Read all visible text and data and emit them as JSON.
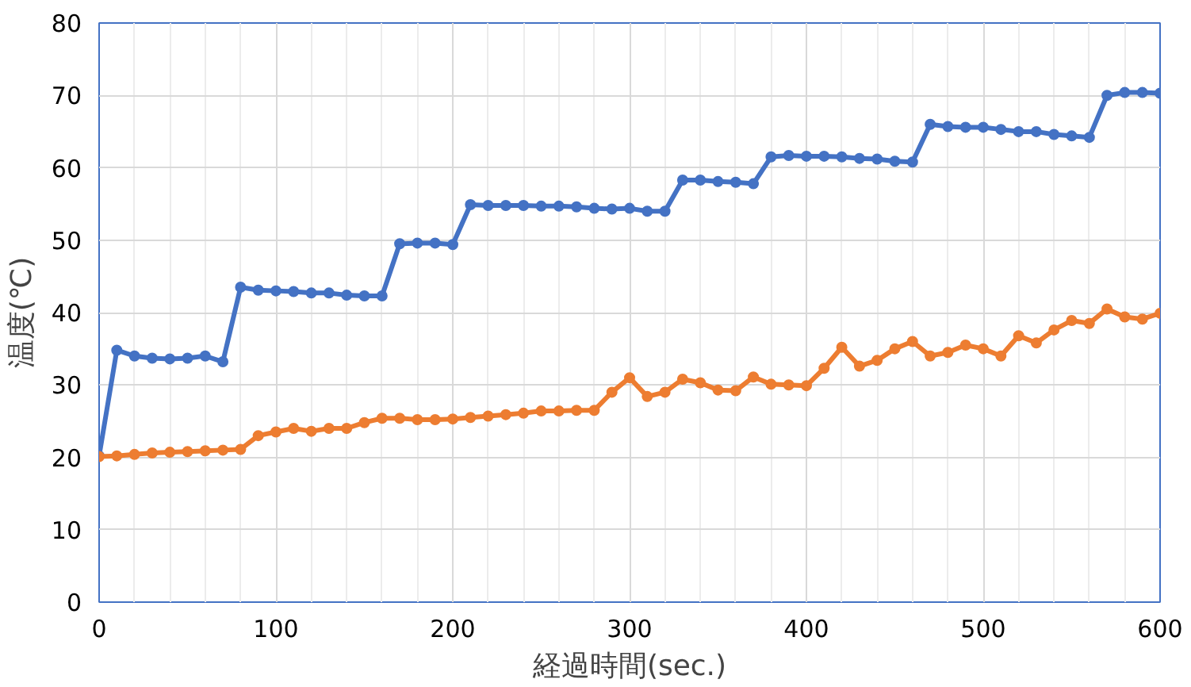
{
  "chart_data": {
    "type": "line",
    "xlabel": "経過時間(sec.)",
    "ylabel": "温度(℃)",
    "x": [
      0,
      10,
      20,
      30,
      40,
      50,
      60,
      70,
      80,
      90,
      100,
      110,
      120,
      130,
      140,
      150,
      160,
      170,
      180,
      190,
      200,
      210,
      220,
      230,
      240,
      250,
      260,
      270,
      280,
      290,
      300,
      310,
      320,
      330,
      340,
      350,
      360,
      370,
      380,
      390,
      400,
      410,
      420,
      430,
      440,
      450,
      460,
      470,
      480,
      490,
      500,
      510,
      520,
      530,
      540,
      550,
      560,
      570,
      580,
      590,
      600
    ],
    "series": [
      {
        "color": "#4472c4",
        "values": [
          20.2,
          34.8,
          34.0,
          33.7,
          33.6,
          33.7,
          34.0,
          33.2,
          43.5,
          43.1,
          43.0,
          42.9,
          42.7,
          42.7,
          42.4,
          42.3,
          42.3,
          49.5,
          49.6,
          49.6,
          49.4,
          54.9,
          54.8,
          54.8,
          54.8,
          54.7,
          54.7,
          54.6,
          54.4,
          54.3,
          54.4,
          54.0,
          54.0,
          58.3,
          58.3,
          58.1,
          58.0,
          57.8,
          61.5,
          61.7,
          61.6,
          61.6,
          61.5,
          61.3,
          61.2,
          60.9,
          60.8,
          66.0,
          65.7,
          65.6,
          65.6,
          65.3,
          65.0,
          65.0,
          64.6,
          64.4,
          64.2,
          70.0,
          70.4,
          70.4,
          70.3
        ]
      },
      {
        "color": "#ed7d31",
        "values": [
          20.1,
          20.2,
          20.4,
          20.6,
          20.7,
          20.8,
          20.9,
          21.0,
          21.1,
          23.0,
          23.5,
          24.0,
          23.6,
          24.0,
          24.0,
          24.8,
          25.4,
          25.4,
          25.2,
          25.2,
          25.3,
          25.5,
          25.7,
          25.9,
          26.1,
          26.4,
          26.4,
          26.5,
          26.5,
          29.0,
          31.0,
          28.4,
          29.0,
          30.8,
          30.3,
          29.3,
          29.2,
          31.1,
          30.1,
          30.0,
          29.9,
          32.3,
          35.2,
          32.6,
          33.4,
          35.0,
          36.0,
          34.0,
          34.5,
          35.5,
          35.0,
          34.0,
          36.8,
          35.8,
          37.6,
          38.9,
          38.5,
          40.5,
          39.4,
          39.1,
          39.9
        ]
      }
    ],
    "xlim": [
      0,
      600
    ],
    "xticks": [
      0,
      100,
      200,
      300,
      400,
      500,
      600
    ],
    "ylim": [
      0,
      80
    ],
    "yticks": [
      0,
      10,
      20,
      30,
      40,
      50,
      60,
      70,
      80
    ],
    "grid": true,
    "marker": "circle",
    "line_style": "solid"
  }
}
